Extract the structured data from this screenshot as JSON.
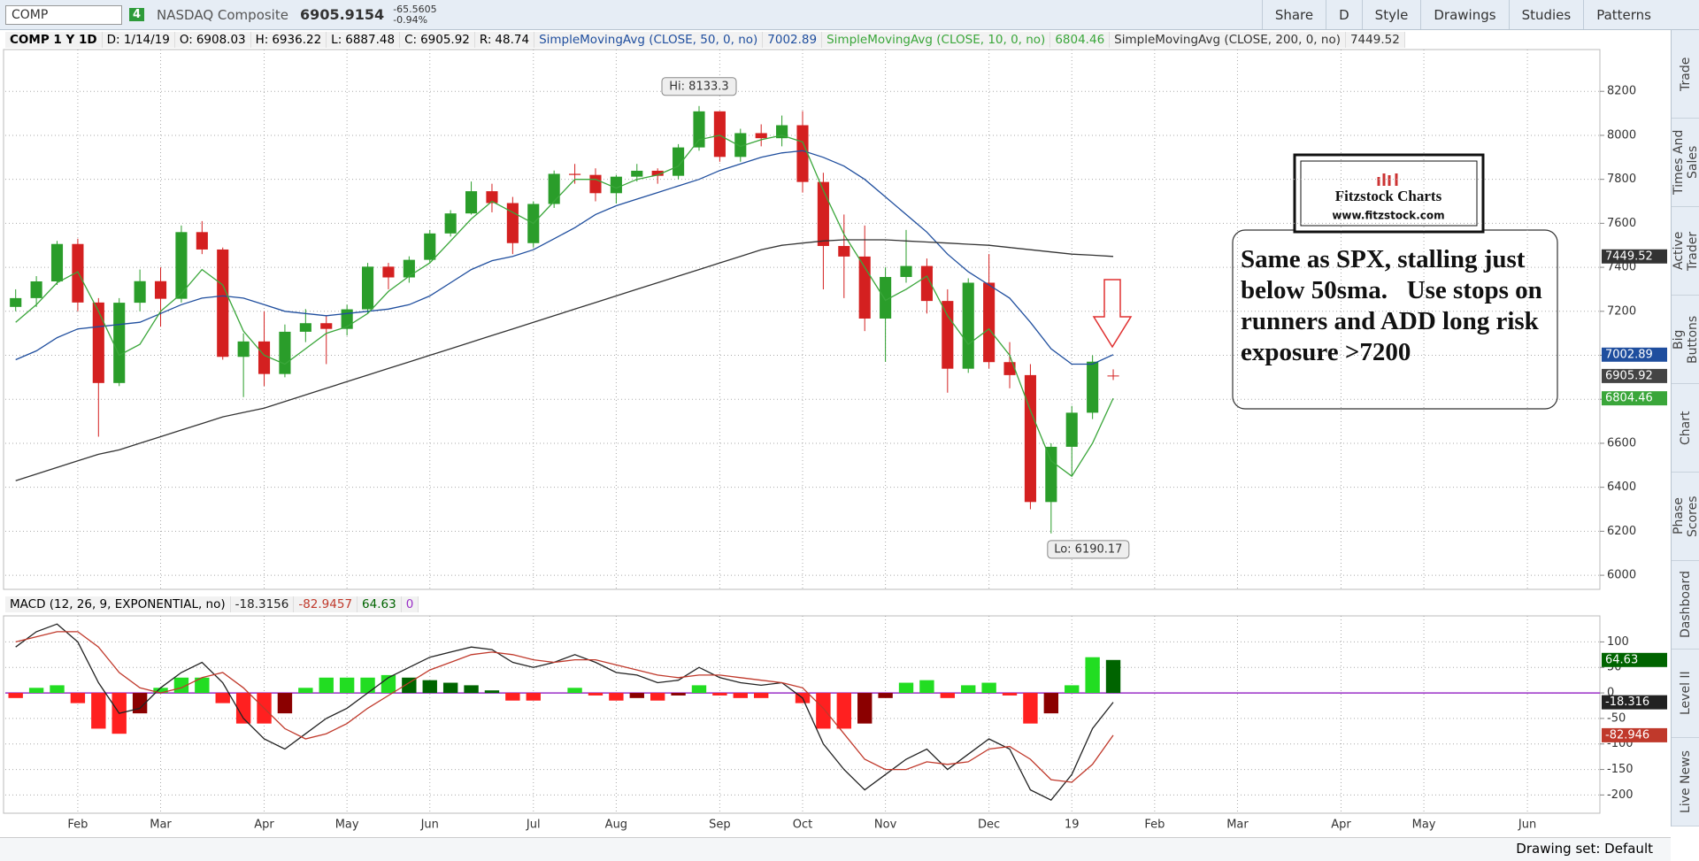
{
  "ui": {
    "symbol": "COMP",
    "link_number": "4",
    "description": "NASDAQ Composite",
    "last": 6905.9154,
    "change": -65.5605,
    "change_pct": "-0.94%",
    "buttons": [
      "Share",
      "D",
      "Style",
      "Drawings",
      "Studies",
      "Patterns"
    ],
    "side_tabs": [
      "Trade",
      "Times And Sales",
      "Active Trader",
      "Big Buttons",
      "Chart",
      "Phase Scores",
      "Dashboard",
      "Level II",
      "Live News"
    ],
    "drawing_set": "Drawing set: Default",
    "chart_label": "COMP 1 Y 1D",
    "date": "D: 1/14/19",
    "ohlc_labels": [
      "O:",
      "H:",
      "L:",
      "C:",
      "R:"
    ],
    "range": 48.74,
    "logo_title": "Fitzstock Charts",
    "logo_url": "www.fitzstock.com",
    "note": "Same as SPX, stalling just below 50sma.   Use stops on runners and ADD long risk exposure >7200"
  },
  "chart_data": [
    {
      "type": "candlestick",
      "categories": [
        null,
        null,
        null,
        "Feb",
        null,
        null,
        null,
        "Mar",
        null,
        null,
        null,
        null,
        "Apr",
        null,
        null,
        null,
        "May",
        null,
        null,
        null,
        "Jun",
        null,
        null,
        null,
        null,
        "Jul",
        null,
        null,
        null,
        "Aug",
        null,
        null,
        null,
        null,
        "Sep",
        null,
        null,
        null,
        "Oct",
        null,
        null,
        null,
        "Nov",
        null,
        null,
        null,
        null,
        "Dec",
        null,
        null,
        null,
        "19",
        null,
        null,
        null,
        "Feb",
        null,
        null,
        null,
        "Mar",
        null,
        null,
        null,
        null,
        "Apr",
        null,
        null,
        null,
        "May",
        null,
        null,
        null,
        null,
        "Jun",
        null,
        null,
        null
      ],
      "open": [
        7220,
        7260,
        7336,
        7506,
        7240,
        6874,
        7239,
        7337,
        7257,
        7560,
        7481,
        6993,
        7063,
        6915,
        7107,
        7146,
        7120,
        7209,
        7403,
        7354,
        7434,
        7554,
        7645,
        7746,
        7692,
        7510,
        7688,
        7825,
        7820,
        7737,
        7812,
        7839,
        7816,
        7945,
        8109,
        7902,
        8010,
        7987,
        8046,
        7788,
        7497,
        7449,
        7167,
        7356,
        7406,
        7247,
        6939,
        7330,
        6969,
        6910,
        6333,
        6584,
        6739,
        6908.03,
        null,
        null,
        null,
        null,
        null,
        null,
        null,
        null,
        null,
        null,
        null,
        null,
        null,
        null,
        null,
        null,
        null,
        null,
        null,
        null,
        null,
        null,
        null
      ],
      "high": [
        7300,
        7360,
        7520,
        7530,
        7260,
        7260,
        7390,
        7400,
        7590,
        7610,
        7490,
        7100,
        7200,
        7140,
        7210,
        7180,
        7230,
        7420,
        7420,
        7450,
        7570,
        7660,
        7790,
        7780,
        7720,
        7700,
        7840,
        7870,
        7850,
        7820,
        7870,
        7850,
        7960,
        8133.3,
        8110,
        8030,
        8050,
        8090,
        8110,
        7830,
        7640,
        7590,
        7400,
        7570,
        7440,
        7300,
        7350,
        7460,
        7060,
        6960,
        6600,
        6770,
        7000,
        6936.22,
        null,
        null,
        null,
        null,
        null,
        null,
        null,
        null,
        null,
        null,
        null,
        null,
        null,
        null,
        null,
        null,
        null,
        null,
        null,
        null,
        null,
        null,
        null
      ],
      "low": [
        7200,
        7220,
        7320,
        7200,
        6630,
        6860,
        7200,
        7130,
        7240,
        7460,
        6980,
        6810,
        6860,
        6900,
        7060,
        6960,
        7090,
        7190,
        7300,
        7330,
        7420,
        7540,
        7640,
        7650,
        7460,
        7490,
        7670,
        7780,
        7700,
        7690,
        7790,
        7780,
        7800,
        7930,
        7880,
        7880,
        7950,
        7950,
        7740,
        7300,
        7260,
        7110,
        6970,
        7330,
        7190,
        6830,
        6920,
        6940,
        6850,
        6300,
        6190.17,
        6450,
        6710,
        6887.48,
        null,
        null,
        null,
        null,
        null,
        null,
        null,
        null,
        null,
        null,
        null,
        null,
        null,
        null,
        null,
        null,
        null,
        null,
        null,
        null,
        null,
        null,
        null
      ],
      "close": [
        7260,
        7336,
        7506,
        7240,
        6874,
        7239,
        7337,
        7257,
        7560,
        7481,
        6993,
        7063,
        6915,
        7107,
        7146,
        7120,
        7209,
        7403,
        7354,
        7434,
        7554,
        7645,
        7746,
        7692,
        7510,
        7688,
        7825,
        7820,
        7737,
        7812,
        7839,
        7816,
        7945,
        8109,
        7902,
        8010,
        7987,
        8046,
        7788,
        7497,
        7449,
        7167,
        7356,
        7406,
        7247,
        6939,
        7330,
        6969,
        6910,
        6333,
        6584,
        6739,
        6971,
        6905.92,
        null,
        null,
        null,
        null,
        null,
        null,
        null,
        null,
        null,
        null,
        null,
        null,
        null,
        null,
        null,
        null,
        null,
        null,
        null,
        null,
        null,
        null,
        null
      ],
      "up_color": "#2a9d2a",
      "down_color": "#d42020",
      "close_badge_color": "#444444",
      "series": [
        {
          "name": "SimpleMovingAvg (CLOSE, 50, 0, no)",
          "color": "#1f4e9e",
          "values": [
            6980,
            7020,
            7080,
            7120,
            7130,
            7140,
            7150,
            7190,
            7230,
            7260,
            7270,
            7260,
            7230,
            7200,
            7190,
            7180,
            7190,
            7200,
            7210,
            7230,
            7270,
            7330,
            7390,
            7430,
            7450,
            7480,
            7530,
            7580,
            7640,
            7680,
            7710,
            7740,
            7770,
            7800,
            7840,
            7870,
            7900,
            7920,
            7930,
            7900,
            7860,
            7800,
            7720,
            7640,
            7560,
            7460,
            7380,
            7320,
            7260,
            7150,
            7030,
            6960,
            6960,
            7002.89,
            null,
            null,
            null,
            null,
            null,
            null,
            null,
            null,
            null,
            null,
            null,
            null,
            null,
            null,
            null,
            null,
            null,
            null,
            null,
            null,
            null,
            null,
            null
          ]
        },
        {
          "name": "SimpleMovingAvg (CLOSE, 10, 0, no)",
          "color": "#3aa63a",
          "values": [
            7150,
            7230,
            7330,
            7380,
            7200,
            7000,
            7050,
            7200,
            7280,
            7390,
            7320,
            7110,
            7000,
            6960,
            7030,
            7100,
            7130,
            7190,
            7290,
            7360,
            7420,
            7520,
            7620,
            7700,
            7650,
            7600,
            7700,
            7800,
            7800,
            7760,
            7800,
            7820,
            7860,
            7980,
            8000,
            7950,
            7980,
            8000,
            7970,
            7750,
            7550,
            7400,
            7250,
            7300,
            7360,
            7180,
            7050,
            7120,
            7000,
            6750,
            6520,
            6450,
            6600,
            6804.46,
            null,
            null,
            null,
            null,
            null,
            null,
            null,
            null,
            null,
            null,
            null,
            null,
            null,
            null,
            null,
            null,
            null,
            null,
            null,
            null,
            null,
            null,
            null
          ]
        },
        {
          "name": "SimpleMovingAvg (CLOSE, 200, 0, no)",
          "color": "#333333",
          "values": [
            6430,
            6460,
            6490,
            6520,
            6550,
            6570,
            6600,
            6630,
            6660,
            6690,
            6720,
            6740,
            6760,
            6790,
            6820,
            6850,
            6880,
            6910,
            6940,
            6970,
            7000,
            7030,
            7060,
            7090,
            7120,
            7150,
            7180,
            7210,
            7240,
            7270,
            7300,
            7330,
            7360,
            7390,
            7420,
            7450,
            7480,
            7500,
            7510,
            7520,
            7525,
            7525,
            7525,
            7520,
            7515,
            7510,
            7505,
            7500,
            7490,
            7480,
            7470,
            7460,
            7455,
            7449.52,
            null,
            null,
            null,
            null,
            null,
            null,
            null,
            null,
            null,
            null,
            null,
            null,
            null,
            null,
            null,
            null,
            null,
            null,
            null,
            null,
            null,
            null,
            null
          ]
        }
      ],
      "hi_label": "Hi: 8133.3",
      "lo_label": "Lo: 6190.17",
      "ylim": [
        5940,
        8390
      ],
      "yticks": [
        6000,
        6200,
        6400,
        6600,
        6800,
        7000,
        7200,
        7400,
        7600,
        7800,
        8000,
        8200
      ],
      "grid": true
    },
    {
      "type": "macd",
      "title": "MACD (12, 26, 9, EXPONENTIAL, no)",
      "series": [
        {
          "color": "#222222",
          "value_label": "-18.316",
          "values": [
            90,
            120,
            135,
            100,
            20,
            -40,
            -30,
            10,
            40,
            60,
            20,
            -50,
            -90,
            -110,
            -80,
            -50,
            -30,
            0,
            30,
            50,
            70,
            80,
            90,
            85,
            60,
            50,
            60,
            75,
            60,
            40,
            35,
            20,
            25,
            50,
            30,
            20,
            15,
            20,
            -10,
            -100,
            -150,
            -190,
            -160,
            -130,
            -110,
            -150,
            -120,
            -90,
            -110,
            -190,
            -210,
            -160,
            -70,
            -18.3156,
            null,
            null,
            null,
            null,
            null,
            null,
            null,
            null,
            null,
            null,
            null,
            null,
            null,
            null,
            null,
            null,
            null,
            null,
            null,
            null,
            null,
            null,
            null
          ]
        },
        {
          "color": "#c0392b",
          "value_label": "-82.946",
          "values": [
            100,
            110,
            120,
            120,
            90,
            40,
            10,
            0,
            10,
            30,
            40,
            10,
            -30,
            -70,
            -90,
            -80,
            -60,
            -30,
            -5,
            20,
            45,
            60,
            75,
            80,
            75,
            65,
            60,
            65,
            65,
            55,
            45,
            35,
            30,
            35,
            35,
            30,
            25,
            20,
            10,
            -30,
            -80,
            -130,
            -150,
            -150,
            -135,
            -140,
            -135,
            -110,
            -105,
            -130,
            -170,
            -175,
            -140,
            -82.9457,
            null,
            null,
            null,
            null,
            null,
            null,
            null,
            null,
            null,
            null,
            null,
            null,
            null,
            null,
            null,
            null,
            null,
            null,
            null,
            null,
            null,
            null,
            null
          ]
        }
      ],
      "histogram": {
        "colors": [
          "#22dd22",
          "#006400",
          "#ff2020",
          "#8b0000"
        ],
        "values": [
          -10,
          10,
          15,
          -20,
          -70,
          -80,
          -40,
          10,
          30,
          30,
          -20,
          -60,
          -60,
          -40,
          10,
          30,
          30,
          30,
          35,
          30,
          25,
          20,
          15,
          5,
          -15,
          -15,
          0,
          10,
          -5,
          -15,
          -10,
          -15,
          -5,
          15,
          -5,
          -10,
          -10,
          0,
          -20,
          -70,
          -70,
          -60,
          -10,
          20,
          25,
          -10,
          15,
          20,
          -5,
          -60,
          -40,
          15,
          70,
          64.63,
          null,
          null,
          null,
          null,
          null,
          null,
          null,
          null,
          null,
          null,
          null,
          null,
          null,
          null,
          null,
          null,
          null,
          null,
          null,
          null,
          null,
          null,
          null
        ]
      },
      "zero_line": 0,
      "zero_color": "#9b30c8",
      "ylim": [
        -234,
        151
      ],
      "yticks": [
        100,
        50,
        0,
        -50,
        -100,
        -150,
        -200
      ],
      "grid": true
    }
  ]
}
